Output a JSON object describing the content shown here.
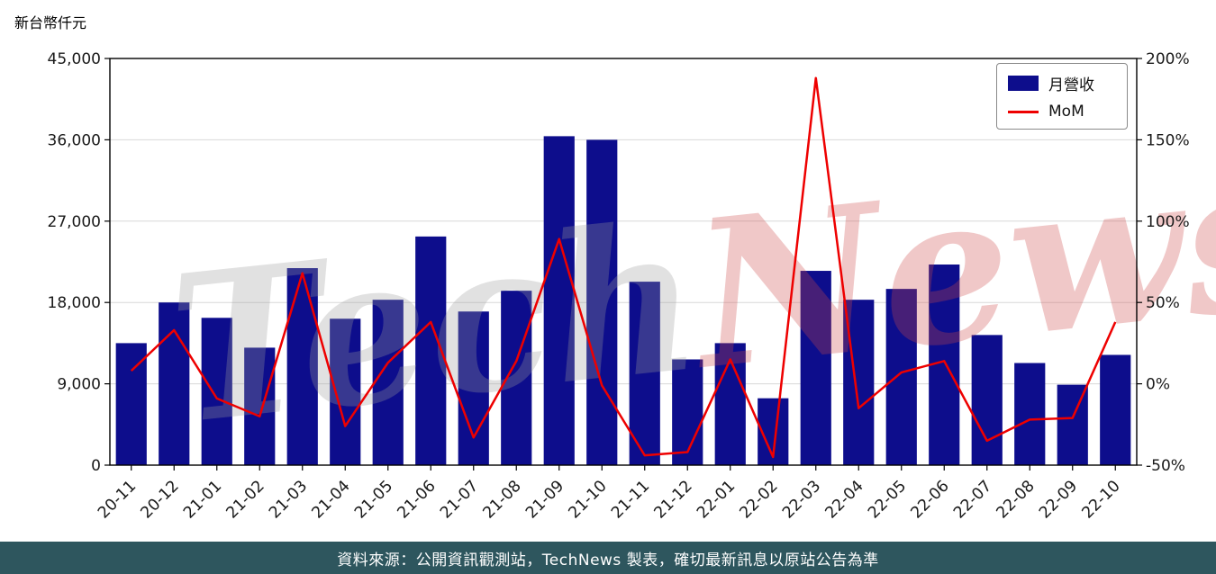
{
  "title": "新台幣仟元",
  "watermark": {
    "part1": "Tech",
    "part2": "News"
  },
  "legend": {
    "bar_label": "月營收",
    "line_label": "MoM"
  },
  "footer": {
    "text": "資料來源：公開資訊觀測站，TechNews 製表，確切最新訊息以原站公告為準"
  },
  "colors": {
    "bar": "#0d0d8c",
    "line": "#ee0000",
    "grid": "#d8d8d8",
    "axis": "#000000",
    "tick_text": "#1a1a1a",
    "footer_bg": "#2e565e",
    "watermark_gray": "#9a9a9a",
    "watermark_red": "#cc4848"
  },
  "chart_data": {
    "type": "bar",
    "title": "",
    "categories": [
      "20-11",
      "20-12",
      "21-01",
      "21-02",
      "21-03",
      "21-04",
      "21-05",
      "21-06",
      "21-07",
      "21-08",
      "21-09",
      "21-10",
      "21-11",
      "21-12",
      "22-01",
      "22-02",
      "22-03",
      "22-04",
      "22-05",
      "22-06",
      "22-07",
      "22-08",
      "22-09",
      "22-10"
    ],
    "series": [
      {
        "name": "月營收",
        "type": "bar",
        "axis": "left",
        "unit": "新台幣仟元",
        "values": [
          13500,
          18000,
          16300,
          13000,
          21800,
          16200,
          18300,
          25300,
          17000,
          19300,
          36400,
          36000,
          20300,
          11700,
          13500,
          7400,
          21500,
          18300,
          19500,
          22200,
          14400,
          11300,
          8900,
          12200
        ]
      },
      {
        "name": "MoM",
        "type": "line",
        "axis": "right",
        "unit": "%",
        "values": [
          8,
          33,
          -9,
          -20,
          68,
          -26,
          13,
          38,
          -33,
          14,
          89,
          -1,
          -44,
          -42,
          15,
          -45,
          188,
          -15,
          7,
          14,
          -35,
          -22,
          -21,
          38
        ]
      }
    ],
    "left_axis": {
      "label": "新台幣仟元",
      "range": [
        0,
        45000
      ],
      "ticks": [
        0,
        9000,
        18000,
        27000,
        36000,
        45000
      ]
    },
    "right_axis": {
      "range": [
        -50,
        200
      ],
      "ticks": [
        -50,
        0,
        50,
        100,
        150,
        200
      ],
      "unit": "%"
    },
    "grid": true,
    "legend_position": "top-right"
  }
}
